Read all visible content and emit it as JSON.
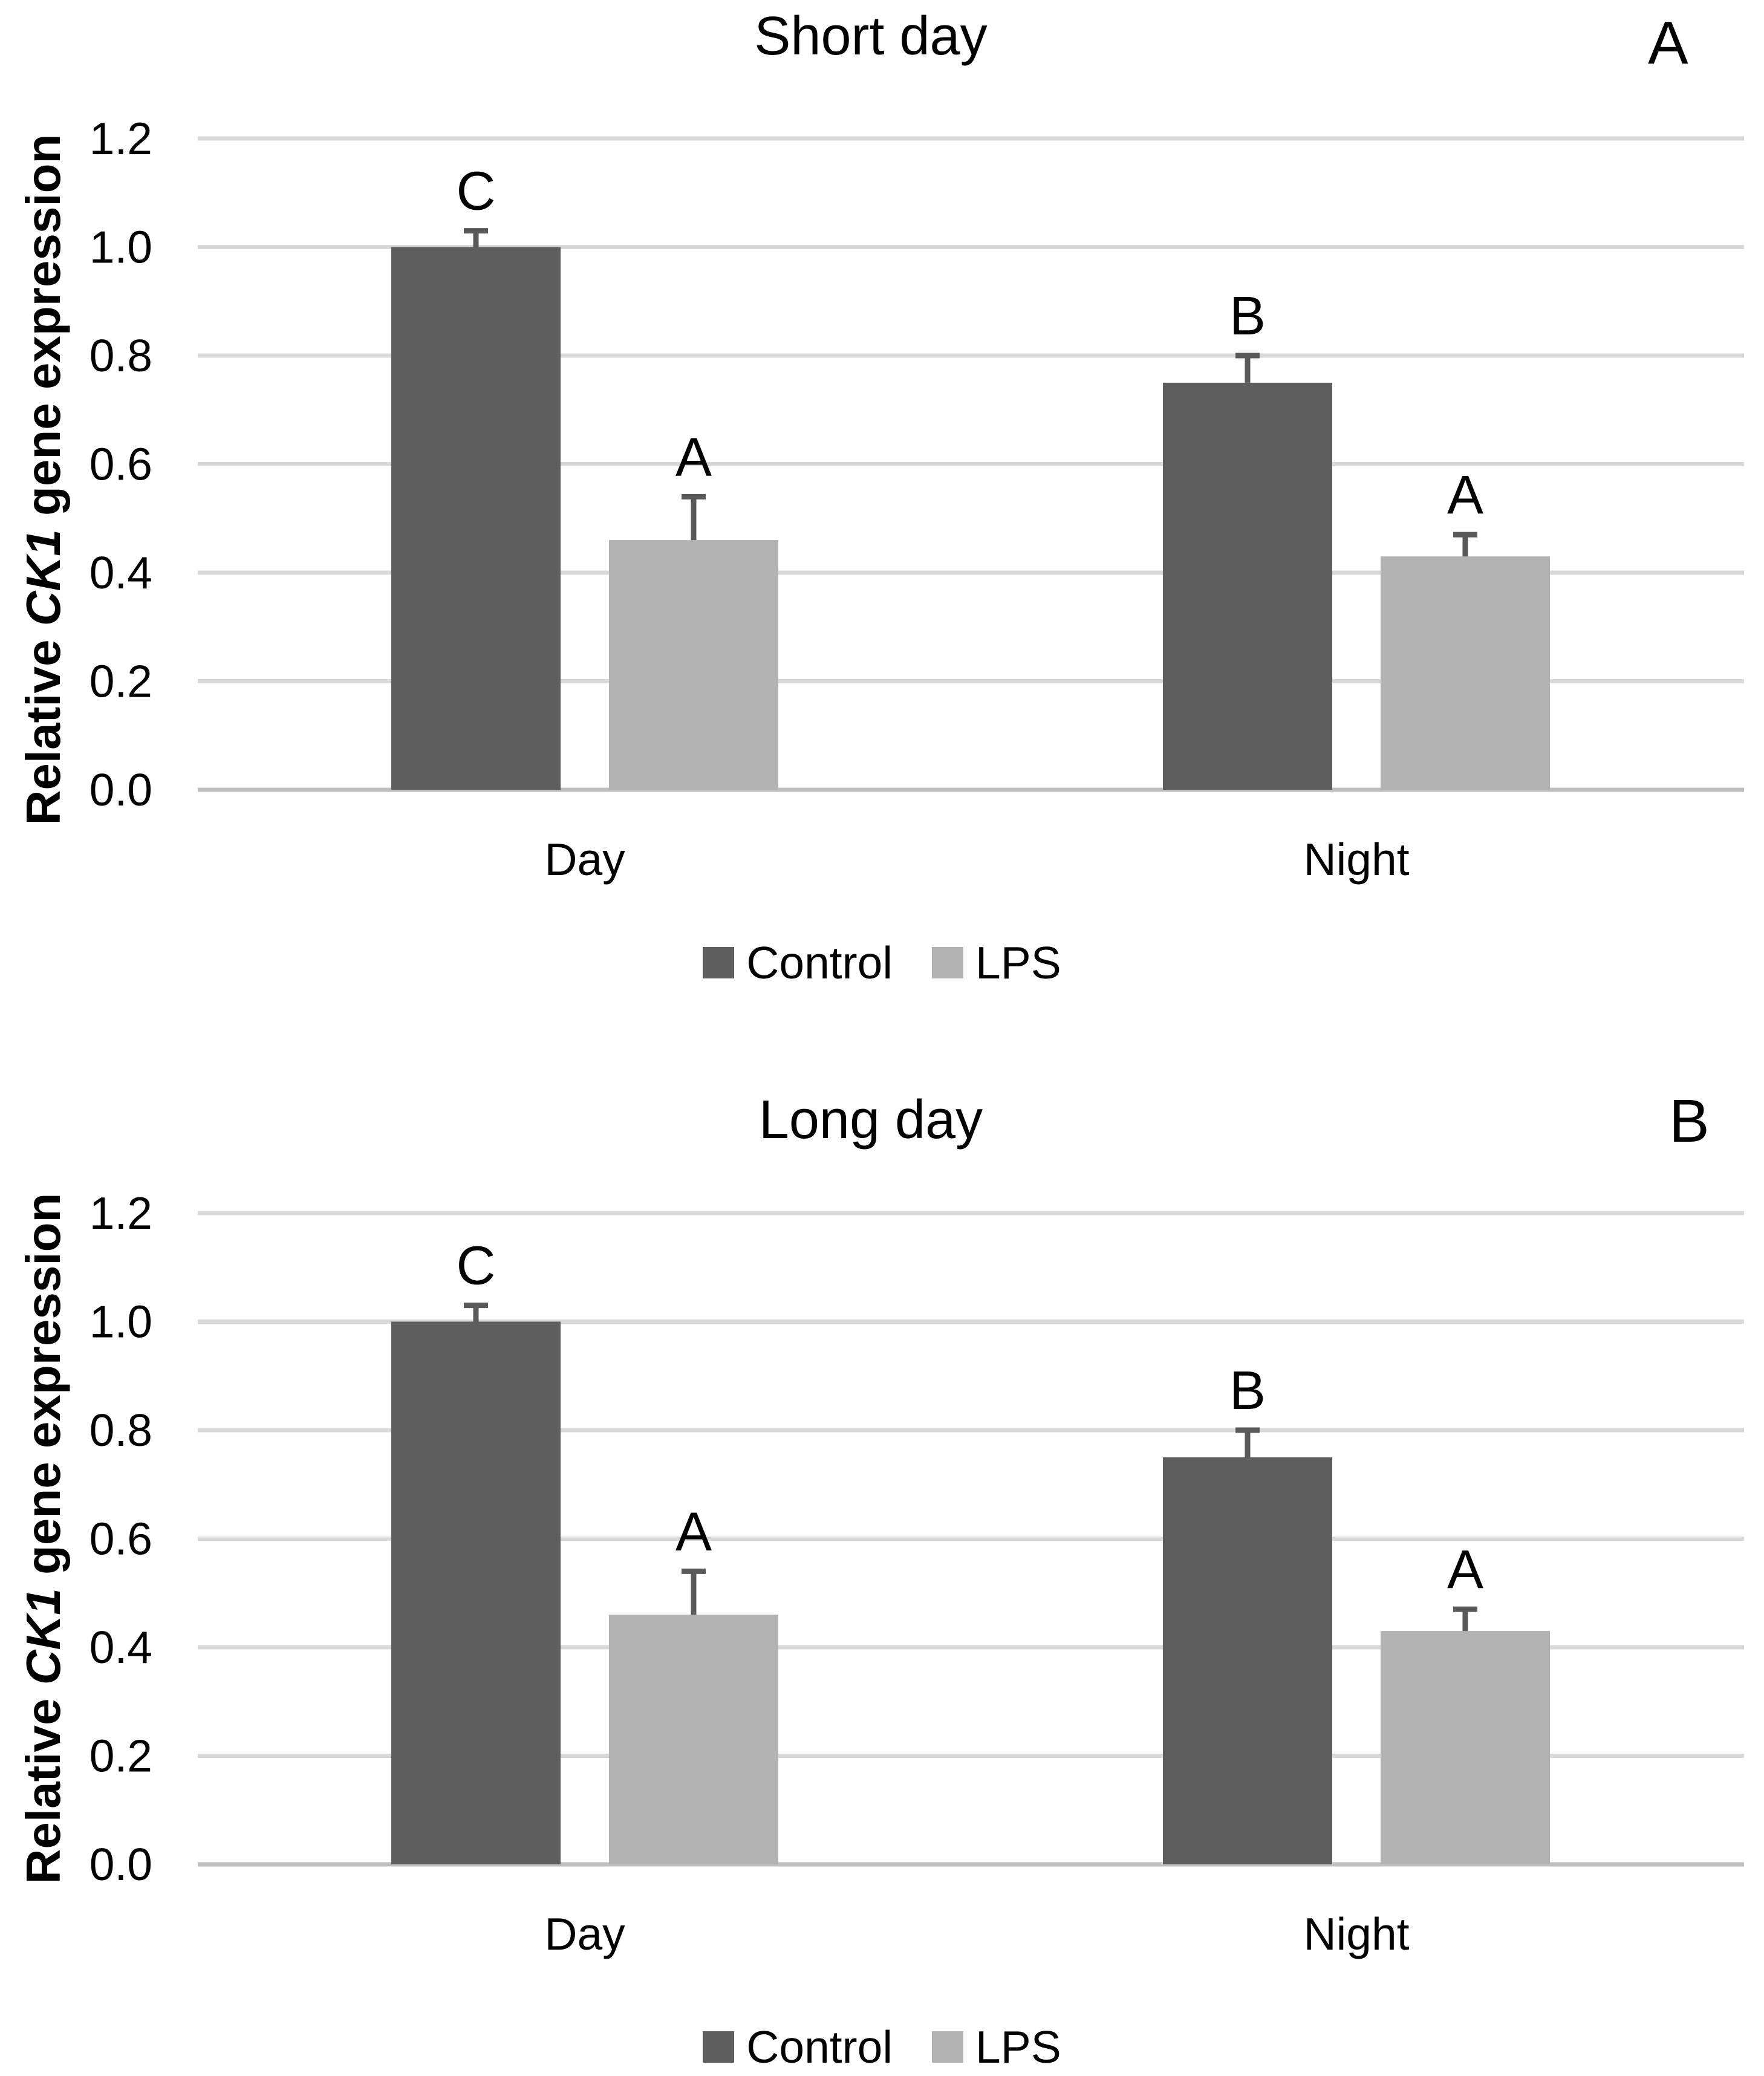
{
  "figure": {
    "background": "#ffffff",
    "text_color": "#000000"
  },
  "colors": {
    "control_bar": "#5E5E5E",
    "lps_bar": "#B2B2B2",
    "gridline": "#D9D9D9",
    "axis_line": "#BFBFBF",
    "error_bar": "#595959"
  },
  "chart_data": [
    {
      "type": "bar",
      "panel_label": "A",
      "title": "Short day",
      "categories": [
        "Day",
        "Night"
      ],
      "series": [
        {
          "name": "Control",
          "color": "#5E5E5E",
          "values": [
            1.0,
            0.75
          ],
          "errors": [
            0.03,
            0.05
          ],
          "sig_letters": [
            "C",
            "B"
          ]
        },
        {
          "name": "LPS",
          "color": "#B2B2B2",
          "values": [
            0.46,
            0.43
          ],
          "errors": [
            0.08,
            0.04
          ],
          "sig_letters": [
            "A",
            "A"
          ]
        }
      ],
      "ylabel_parts": [
        "Relative ",
        "CK1",
        " gene expression"
      ],
      "yticks": [
        "0.0",
        "0.2",
        "0.4",
        "0.6",
        "0.8",
        "1.0",
        "1.2"
      ],
      "ylim": [
        0,
        1.2
      ],
      "grid": true,
      "legend_position": "bottom",
      "legend": [
        "Control",
        "LPS"
      ]
    },
    {
      "type": "bar",
      "panel_label": "B",
      "title": "Long day",
      "categories": [
        "Day",
        "Night"
      ],
      "series": [
        {
          "name": "Control",
          "color": "#5E5E5E",
          "values": [
            1.0,
            0.75
          ],
          "errors": [
            0.03,
            0.05
          ],
          "sig_letters": [
            "C",
            "B"
          ]
        },
        {
          "name": "LPS",
          "color": "#B2B2B2",
          "values": [
            0.46,
            0.43
          ],
          "errors": [
            0.08,
            0.04
          ],
          "sig_letters": [
            "A",
            "A"
          ]
        }
      ],
      "ylabel_parts": [
        "Relative ",
        "CK1",
        " gene expression"
      ],
      "yticks": [
        "0.0",
        "0.2",
        "0.4",
        "0.6",
        "0.8",
        "1.0",
        "1.2"
      ],
      "ylim": [
        0,
        1.2
      ],
      "grid": true,
      "legend_position": "bottom",
      "legend": [
        "Control",
        "LPS"
      ]
    }
  ]
}
